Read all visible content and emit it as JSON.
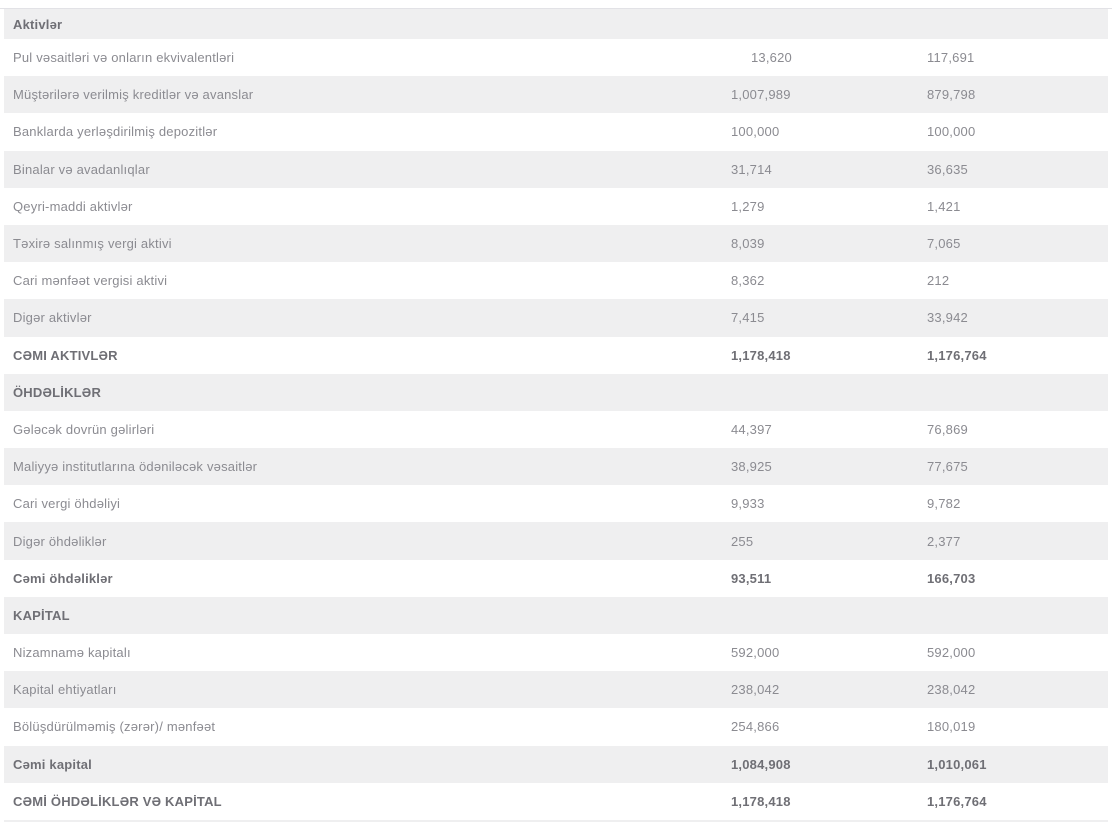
{
  "colors": {
    "stripe": "#efeff0",
    "white_row": "#ffffff",
    "border": "#e2e2e6",
    "text": "#8b8b91",
    "text_bold": "#6f6f75"
  },
  "table": {
    "rows": [
      {
        "label": "Aktivlər",
        "v1": "",
        "v2": "",
        "style": "section"
      },
      {
        "label": "Pul vəsaitləri və onların ekvivalentləri",
        "v1": "13,620",
        "v2": "117,691",
        "style": "regular",
        "v1_indent": true
      },
      {
        "label": "Müştərilərə verilmiş kreditlər və avanslar",
        "v1": "1,007,989",
        "v2": "879,798",
        "style": "regular"
      },
      {
        "label": "Banklarda yerləşdirilmiş depozitlər",
        "v1": "100,000",
        "v2": "100,000",
        "style": "regular"
      },
      {
        "label": "Binalar və avadanlıqlar",
        "v1": "31,714",
        "v2": "36,635",
        "style": "regular"
      },
      {
        "label": "Qeyri-maddi aktivlər",
        "v1": "1,279",
        "v2": "1,421",
        "style": "regular"
      },
      {
        "label": "Təxirə salınmış vergi aktivi",
        "v1": "8,039",
        "v2": "7,065",
        "style": "regular"
      },
      {
        "label": "Cari mənfəət vergisi aktivi",
        "v1": "8,362",
        "v2": "212",
        "style": "regular"
      },
      {
        "label": "Digər aktivlər",
        "v1": "7,415",
        "v2": "33,942",
        "style": "regular"
      },
      {
        "label": "CƏMI AKTIVLƏR",
        "v1": "1,178,418",
        "v2": "1,176,764",
        "style": "total"
      },
      {
        "label": "ÖHDƏLİKLƏR",
        "v1": "",
        "v2": "",
        "style": "section"
      },
      {
        "label": "Gələcək dovrün gəlirləri",
        "v1": "44,397",
        "v2": "76,869",
        "style": "regular"
      },
      {
        "label": "Maliyyə institutlarına ödəniləcək vəsaitlər",
        "v1": "38,925",
        "v2": "77,675",
        "style": "regular"
      },
      {
        "label": "Cari vergi öhdəliyi",
        "v1": "9,933",
        "v2": "9,782",
        "style": "regular"
      },
      {
        "label": "Digər öhdəliklər",
        "v1": "255",
        "v2": "2,377",
        "style": "regular"
      },
      {
        "label": "Cəmi öhdəliklər",
        "v1": "93,511",
        "v2": "166,703",
        "style": "total"
      },
      {
        "label": "KAPİTAL",
        "v1": "",
        "v2": "",
        "style": "section"
      },
      {
        "label": "Nizamnamə kapitalı",
        "v1": "592,000",
        "v2": "592,000",
        "style": "regular"
      },
      {
        "label": "Kapital ehtiyatları",
        "v1": "238,042",
        "v2": "238,042",
        "style": "regular"
      },
      {
        "label": "Bölüşdürülməmiş (zərər)/ mənfəət",
        "v1": "254,866",
        "v2": "180,019",
        "style": "regular"
      },
      {
        "label": "Cəmi kapital",
        "v1": "1,084,908",
        "v2": "1,010,061",
        "style": "total"
      },
      {
        "label": "CƏMİ ÖHDƏLİKLƏR VƏ KAPİTAL",
        "v1": "1,178,418",
        "v2": "1,176,764",
        "style": "grand_total"
      }
    ]
  }
}
